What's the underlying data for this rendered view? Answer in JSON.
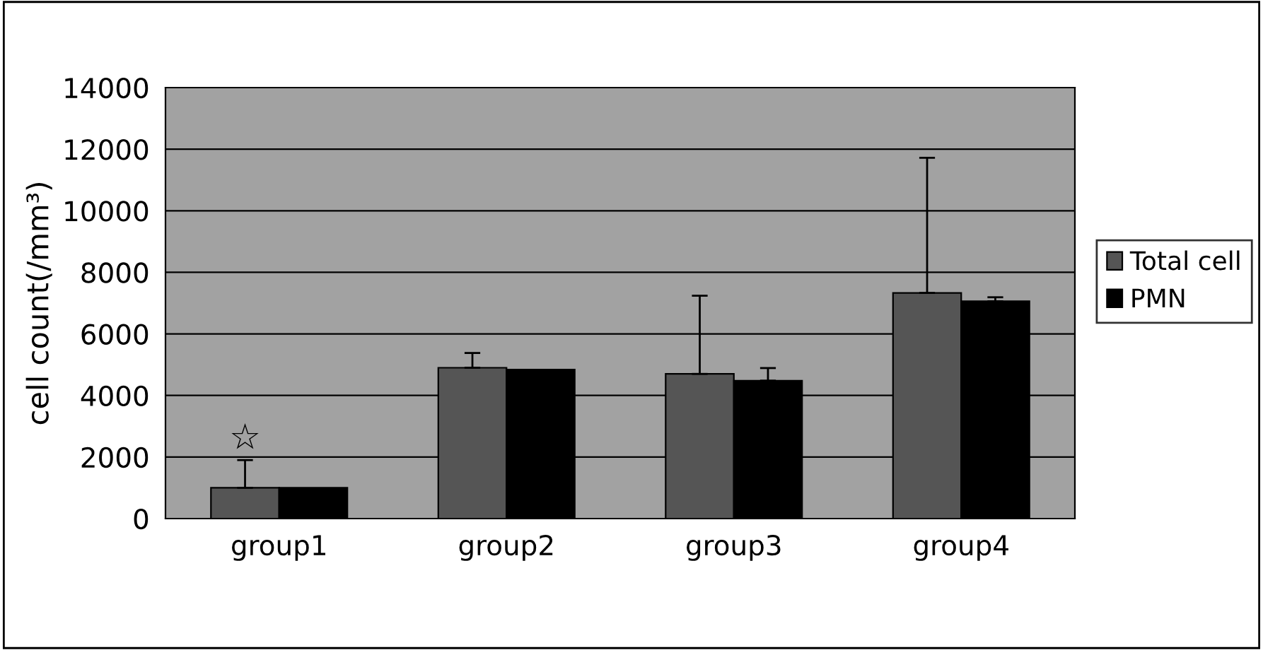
{
  "chart_data": {
    "type": "bar",
    "ylabel": "cell count(/mm³)",
    "categories": [
      "group1",
      "group2",
      "group3",
      "group4"
    ],
    "series": [
      {
        "name": "Total cell",
        "color": "#555555",
        "values": [
          1000,
          4900,
          4700,
          7330
        ],
        "errors": [
          [
            1000,
            1900
          ],
          [
            4900,
            5380
          ],
          [
            4700,
            7240
          ],
          [
            7330,
            11720
          ]
        ]
      },
      {
        "name": "PMN",
        "color": "#000000",
        "values": [
          1000,
          4840,
          4480,
          7060
        ],
        "errors": [
          null,
          null,
          [
            4480,
            4890
          ],
          [
            7060,
            7190
          ]
        ]
      }
    ],
    "annotations": [
      "☆"
    ],
    "ylim": [
      0,
      14000
    ],
    "yticks": [
      0,
      2000,
      4000,
      6000,
      8000,
      10000,
      12000,
      14000
    ],
    "grid": "y",
    "legend": "right"
  }
}
